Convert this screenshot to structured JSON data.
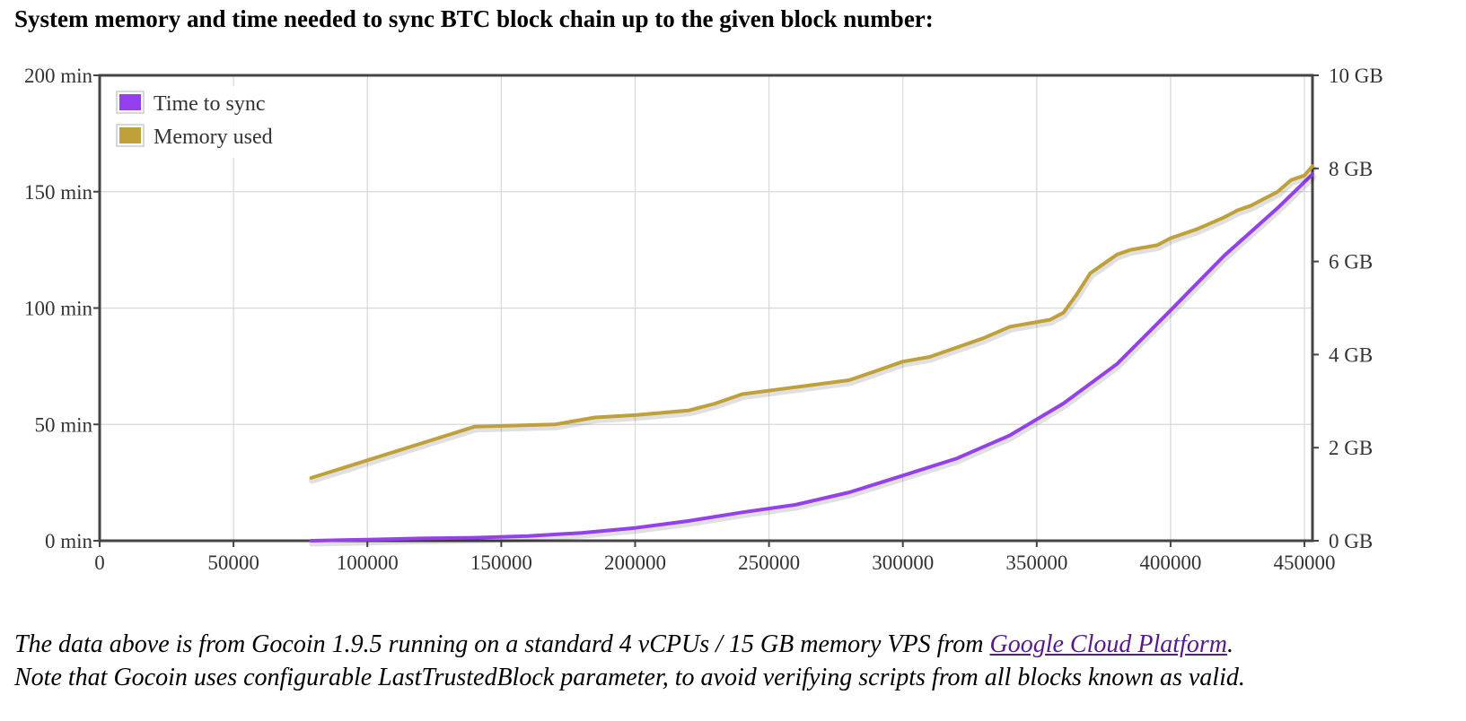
{
  "heading": "System memory and time needed to sync BTC block chain up to the given block number:",
  "chart_data": {
    "type": "line",
    "title": "",
    "xlabel": "",
    "ylabel": "",
    "y2label": "",
    "xlim": [
      0,
      453000
    ],
    "ylim": [
      0,
      200
    ],
    "y2lim": [
      0,
      10
    ],
    "x_ticks": [
      0,
      50000,
      100000,
      150000,
      200000,
      250000,
      300000,
      350000,
      400000,
      450000
    ],
    "y_ticks": [
      0,
      50,
      100,
      150,
      200
    ],
    "y_tick_labels": [
      "0 min",
      "50 min",
      "100 min",
      "150 min",
      "200 min"
    ],
    "y2_ticks": [
      0,
      2,
      4,
      6,
      8,
      10
    ],
    "y2_tick_labels": [
      "0 GB",
      "2 GB",
      "4 GB",
      "6 GB",
      "8 GB",
      "10 GB"
    ],
    "grid": true,
    "legend_position": "top-left",
    "series": [
      {
        "name": "Time to sync",
        "axis": "left",
        "color": "#9440ed",
        "x": [
          79000,
          100000,
          120000,
          140000,
          160000,
          180000,
          200000,
          220000,
          240000,
          260000,
          280000,
          300000,
          320000,
          340000,
          360000,
          380000,
          400000,
          420000,
          440000,
          453000
        ],
        "y": [
          0,
          0.5,
          1,
          1.3,
          2,
          3.4,
          5.5,
          8.5,
          12.2,
          15.5,
          20.8,
          28,
          35.3,
          45.3,
          59,
          76,
          99,
          122.5,
          143,
          157.5
        ]
      },
      {
        "name": "Memory used",
        "axis": "right",
        "color": "#c0a03a",
        "x": [
          79000,
          140000,
          170000,
          185000,
          200000,
          220000,
          230000,
          240000,
          260000,
          280000,
          290000,
          300000,
          310000,
          320000,
          330000,
          340000,
          350000,
          355000,
          360000,
          365000,
          370000,
          375000,
          380000,
          385000,
          390000,
          395000,
          400000,
          410000,
          420000,
          425000,
          430000,
          440000,
          445000,
          450000,
          453000
        ],
        "y": [
          1.35,
          2.45,
          2.5,
          2.65,
          2.7,
          2.8,
          2.95,
          3.15,
          3.3,
          3.45,
          3.65,
          3.85,
          3.95,
          4.15,
          4.35,
          4.6,
          4.7,
          4.75,
          4.9,
          5.3,
          5.75,
          5.95,
          6.15,
          6.25,
          6.3,
          6.35,
          6.5,
          6.7,
          6.95,
          7.1,
          7.2,
          7.5,
          7.75,
          7.85,
          8.05
        ]
      }
    ]
  },
  "footnote": {
    "line1_before": "The data above is from Gocoin 1.9.5 running on a standard 4 vCPUs / 15 GB memory VPS from ",
    "link_text": "Google Cloud Platform",
    "line1_after": ".",
    "line2": "Note that Gocoin uses configurable LastTrustedBlock parameter, to avoid verifying scripts from all blocks known as valid."
  }
}
